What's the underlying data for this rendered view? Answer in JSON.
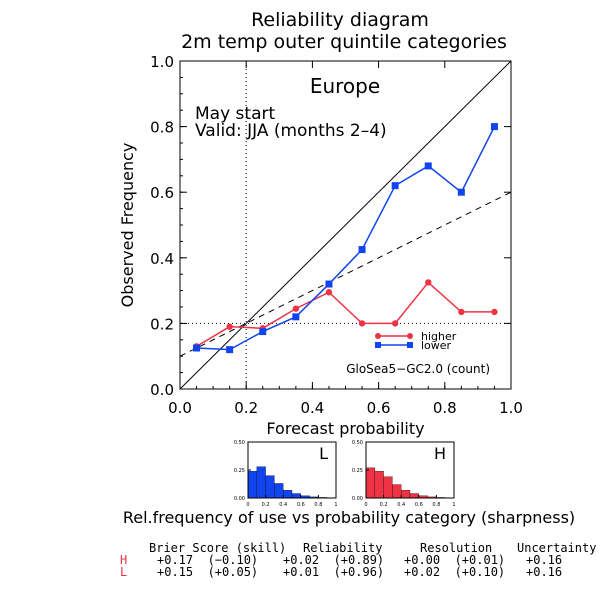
{
  "figure": {
    "title_line1": "Reliability diagram",
    "title_line2": "2m temp outer quintile categories",
    "region": "Europe",
    "start_text": "May start",
    "valid_text": "Valid: JJA (months 2–4)",
    "model_text": "GloSea5−GC2.0 (count)",
    "sharpness_caption": "Rel.frequency of use vs probability category (sharpness)"
  },
  "chart_data": {
    "type": "line",
    "xlabel": "Forecast probability",
    "ylabel": "Observed Frequency",
    "xlim": [
      0,
      1
    ],
    "ylim": [
      0,
      1
    ],
    "xticks": [
      "0.0",
      "0.2",
      "0.4",
      "0.6",
      "0.8",
      "1.0"
    ],
    "yticks": [
      "0.0",
      "0.2",
      "0.4",
      "0.6",
      "0.8",
      "1.0"
    ],
    "climatology": 0.2,
    "series": [
      {
        "name": "higher",
        "color": "#ee3344",
        "marker": "circle",
        "x": [
          0.05,
          0.15,
          0.25,
          0.35,
          0.45,
          0.55,
          0.65,
          0.75,
          0.85,
          0.95
        ],
        "y": [
          0.13,
          0.19,
          0.185,
          0.245,
          0.295,
          0.2,
          0.2,
          0.325,
          0.235,
          0.235
        ]
      },
      {
        "name": "lower",
        "color": "#1144ee",
        "marker": "square",
        "x": [
          0.05,
          0.15,
          0.25,
          0.35,
          0.45,
          0.55,
          0.65,
          0.75,
          0.85,
          0.95
        ],
        "y": [
          0.125,
          0.12,
          0.175,
          0.22,
          0.32,
          0.425,
          0.62,
          0.68,
          0.6,
          0.8
        ]
      }
    ],
    "reference_lines": [
      "perfect reliability (diagonal)",
      "no-skill (dashed)",
      "climatology (dotted)"
    ],
    "legend_location": "lower-right"
  },
  "sharpness": [
    {
      "label": "L",
      "color": "#1144ee",
      "yticks": [
        "0.00",
        "0.25",
        "0.50"
      ],
      "xticks": [
        "0",
        "0.2",
        "0.4",
        "0.6",
        "0.8",
        "1"
      ],
      "values": [
        0.24,
        0.28,
        0.2,
        0.13,
        0.07,
        0.04,
        0.02,
        0.01,
        0.005,
        0.003
      ]
    },
    {
      "label": "H",
      "color": "#ee3344",
      "yticks": [
        "0.00",
        "0.25",
        "0.50"
      ],
      "xticks": [
        "0",
        "0.2",
        "0.4",
        "0.6",
        "0.8",
        "1"
      ],
      "values": [
        0.27,
        0.24,
        0.19,
        0.12,
        0.07,
        0.04,
        0.02,
        0.01,
        0.005,
        0.003
      ]
    }
  ],
  "scores": {
    "headers": [
      "Brier Score (skill)",
      "Reliability",
      "Resolution",
      "Uncertainty"
    ],
    "rows": [
      {
        "label": "H",
        "color": "#ee3344",
        "values": [
          "+0.17  (−0.10)",
          "+0.02  (+0.89)",
          "+0.00  (+0.01)",
          "+0.16"
        ]
      },
      {
        "label": "L",
        "color": "#ee3344",
        "values": [
          "+0.15  (+0.05)",
          "+0.01  (+0.96)",
          "+0.02  (+0.10)",
          "+0.16"
        ]
      }
    ]
  }
}
